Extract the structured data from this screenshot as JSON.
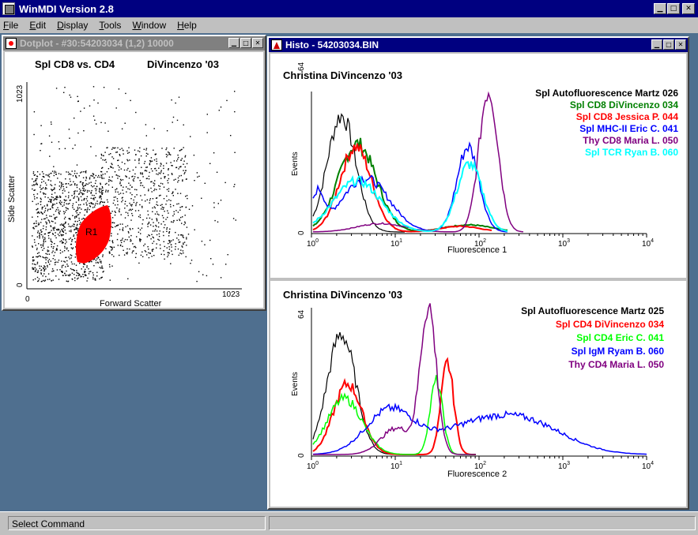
{
  "app": {
    "title": "WinMDI Version 2.8"
  },
  "menu": [
    {
      "label": "File",
      "accel": "F",
      "rest": "ile"
    },
    {
      "label": "Edit",
      "accel": "E",
      "rest": "dit"
    },
    {
      "label": "Display",
      "accel": "D",
      "rest": "isplay"
    },
    {
      "label": "Tools",
      "accel": "T",
      "rest": "ools"
    },
    {
      "label": "Window",
      "accel": "W",
      "rest": "indow"
    },
    {
      "label": "Help",
      "accel": "H",
      "rest": "elp"
    }
  ],
  "dotplot": {
    "window_title": "Dotplot - #30:54203034 (1,2) 10000",
    "title_left": "Spl CD8 vs. CD4",
    "title_right": "DiVincenzo '03",
    "xlabel": "Forward Scatter",
    "ylabel": "Side Scatter",
    "x_min": "0",
    "x_max": "1023",
    "y_min": "0",
    "y_max": "1023",
    "region_label": "R1",
    "region_color": "#ff0000"
  },
  "histo": {
    "window_title": "Histo - 54203034.BIN",
    "panel1": {
      "title": "Christina DiVincenzo '03",
      "xlabel": "Fluorescence 1",
      "ylabel": "Events",
      "y_max": "64",
      "y_min": "0",
      "ticks": [
        {
          "base": "10",
          "exp": "0"
        },
        {
          "base": "10",
          "exp": "1"
        },
        {
          "base": "10",
          "exp": "2"
        },
        {
          "base": "10",
          "exp": "3"
        },
        {
          "base": "10",
          "exp": "4"
        }
      ],
      "legend": [
        {
          "label": "Spl Autofluorescence Martz 026",
          "color": "#000000"
        },
        {
          "label": "Spl CD8 DiVincenzo 034",
          "color": "#008000"
        },
        {
          "label": "Spl CD8 Jessica P. 044",
          "color": "#ff0000"
        },
        {
          "label": "Spl MHC-II Eric C. 041",
          "color": "#0000ff"
        },
        {
          "label": "Thy CD8 Maria L. 050",
          "color": "#800080"
        },
        {
          "label": "Spl TCR Ryan B. 060",
          "color": "#00ffff"
        }
      ]
    },
    "panel2": {
      "title": "Christina DiVincenzo '03",
      "xlabel": "Fluorescence 2",
      "ylabel": "Events",
      "y_max": "64",
      "y_min": "0",
      "ticks": [
        {
          "base": "10",
          "exp": "0"
        },
        {
          "base": "10",
          "exp": "1"
        },
        {
          "base": "10",
          "exp": "2"
        },
        {
          "base": "10",
          "exp": "3"
        },
        {
          "base": "10",
          "exp": "4"
        }
      ],
      "legend": [
        {
          "label": "Spl Autofluorescence Martz 025",
          "color": "#000000"
        },
        {
          "label": "Spl CD4 DiVincenzo 034",
          "color": "#ff0000"
        },
        {
          "label": "Spl CD4 Eric C. 041",
          "color": "#00ff00"
        },
        {
          "label": "Spl IgM Ryam B. 060",
          "color": "#0000ff"
        },
        {
          "label": "Thy CD4 Maria L. 050",
          "color": "#800080"
        }
      ]
    }
  },
  "status": {
    "text": "Select Command"
  }
}
